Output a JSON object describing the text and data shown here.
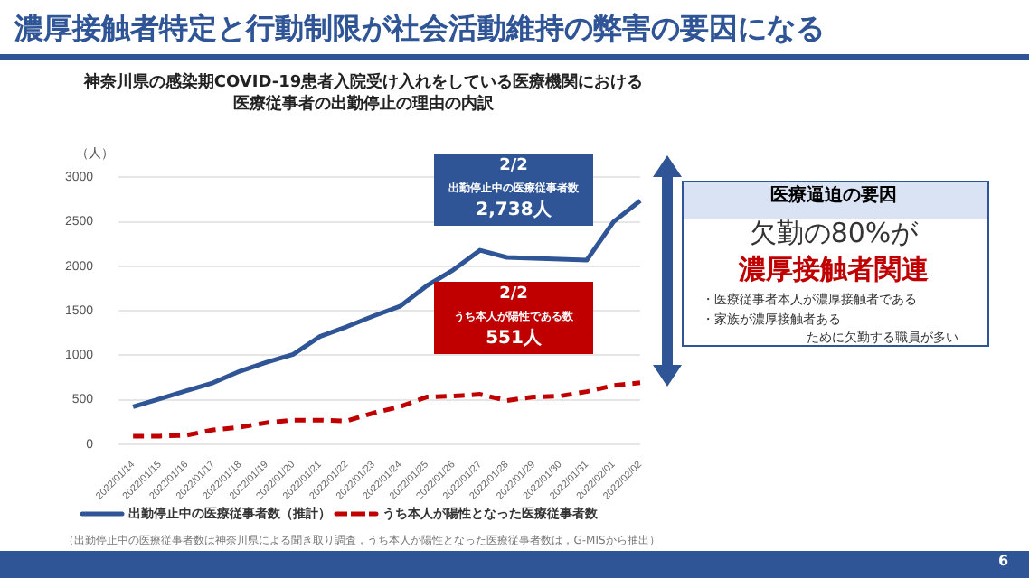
{
  "chart_data": {
    "type": "line",
    "title": "濃厚接触者特定と行動制限が社会活動維持の弊害の要因になる",
    "subtitle": "神奈川県の感染期COVID-19患者入院受け入れをしている医療機関における医療従事者の出勤停止の理由の内訳",
    "ylabel": "（人）",
    "categories": [
      "2022/01/14",
      "2022/01/15",
      "2022/01/16",
      "2022/01/17",
      "2022/01/18",
      "2022/01/19",
      "2022/01/20",
      "2022/01/21",
      "2022/01/22",
      "2022/01/23",
      "2022/01/24",
      "2022/01/25",
      "2022/01/26",
      "2022/01/27",
      "2022/01/28",
      "2022/01/29",
      "2022/01/30",
      "2022/01/31",
      "2022/02/01",
      "2022/02/02"
    ],
    "series": [
      {
        "name": "出勤停止中の医療従事者数（推計）",
        "color": "#2f5597",
        "line_style": "solid",
        "values": [
          420,
          510,
          600,
          690,
          820,
          920,
          1010,
          1210,
          1320,
          1440,
          1550,
          1780,
          1960,
          2180,
          2100,
          2090,
          2080,
          2070,
          2500,
          2738
        ]
      },
      {
        "name": "うち本人が陽性となった医療従事者数",
        "color": "#c00000",
        "line_style": "dashed",
        "values": [
          90,
          90,
          100,
          160,
          190,
          240,
          270,
          270,
          260,
          350,
          420,
          530,
          540,
          560,
          490,
          530,
          540,
          590,
          660,
          690
        ]
      }
    ],
    "ylim": [
      0,
      3000
    ],
    "yticks": [
      0,
      500,
      1000,
      1500,
      2000,
      2500,
      3000
    ],
    "grid": "y",
    "legend": "bottom",
    "marker": "none",
    "annotations": [
      "2/2",
      "出勤停止中の医療従事者数",
      "2,738人",
      "2/2",
      "うち本人が陽性である数",
      "551人",
      "医療逼迫の要因",
      "欠勤の80%が",
      "濃厚接触者関連",
      "・医療従事者本人が濃厚接触者である",
      "・家族が濃厚接触者ある",
      "ために欠勤する職員が多い",
      "（出勤停止中の医療従事者数は神奈川県による聞き取り調査，うち本人が陽性となった医療従事者数は，G-MISから抽出）",
      "6"
    ]
  }
}
